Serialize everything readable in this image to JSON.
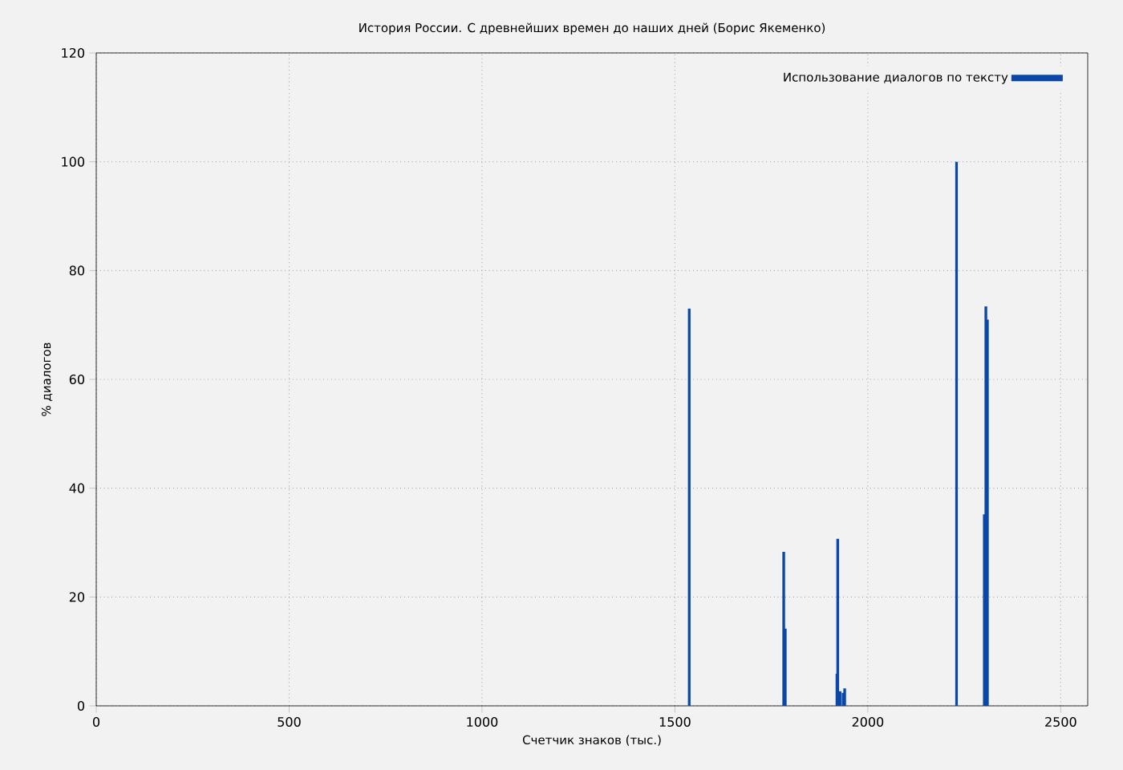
{
  "chart_data": {
    "type": "bar",
    "title": "История России. С древнейших времен до наших дней (Борис Якеменко)",
    "xlabel": "Счетчик знаков (тыс.)",
    "ylabel": "% диалогов",
    "x": [
      1537,
      1782,
      1786,
      1920,
      1922,
      1928,
      1936,
      1940,
      2230,
      2302,
      2306,
      2310
    ],
    "series": [
      {
        "name": "Использование диалогов по тексту",
        "color": "#0a47a9",
        "values": [
          73,
          28.3,
          14.2,
          5.9,
          30.7,
          2.7,
          2.4,
          3.2,
          100,
          35.2,
          73.4,
          71
        ]
      }
    ],
    "xlim": [
      0,
      2570
    ],
    "ylim": [
      0,
      120
    ],
    "xticks": [
      0,
      500,
      1000,
      1500,
      2000,
      2500
    ],
    "yticks": [
      0,
      20,
      40,
      60,
      80,
      100,
      120
    ],
    "grid": true,
    "legend": "top right"
  }
}
